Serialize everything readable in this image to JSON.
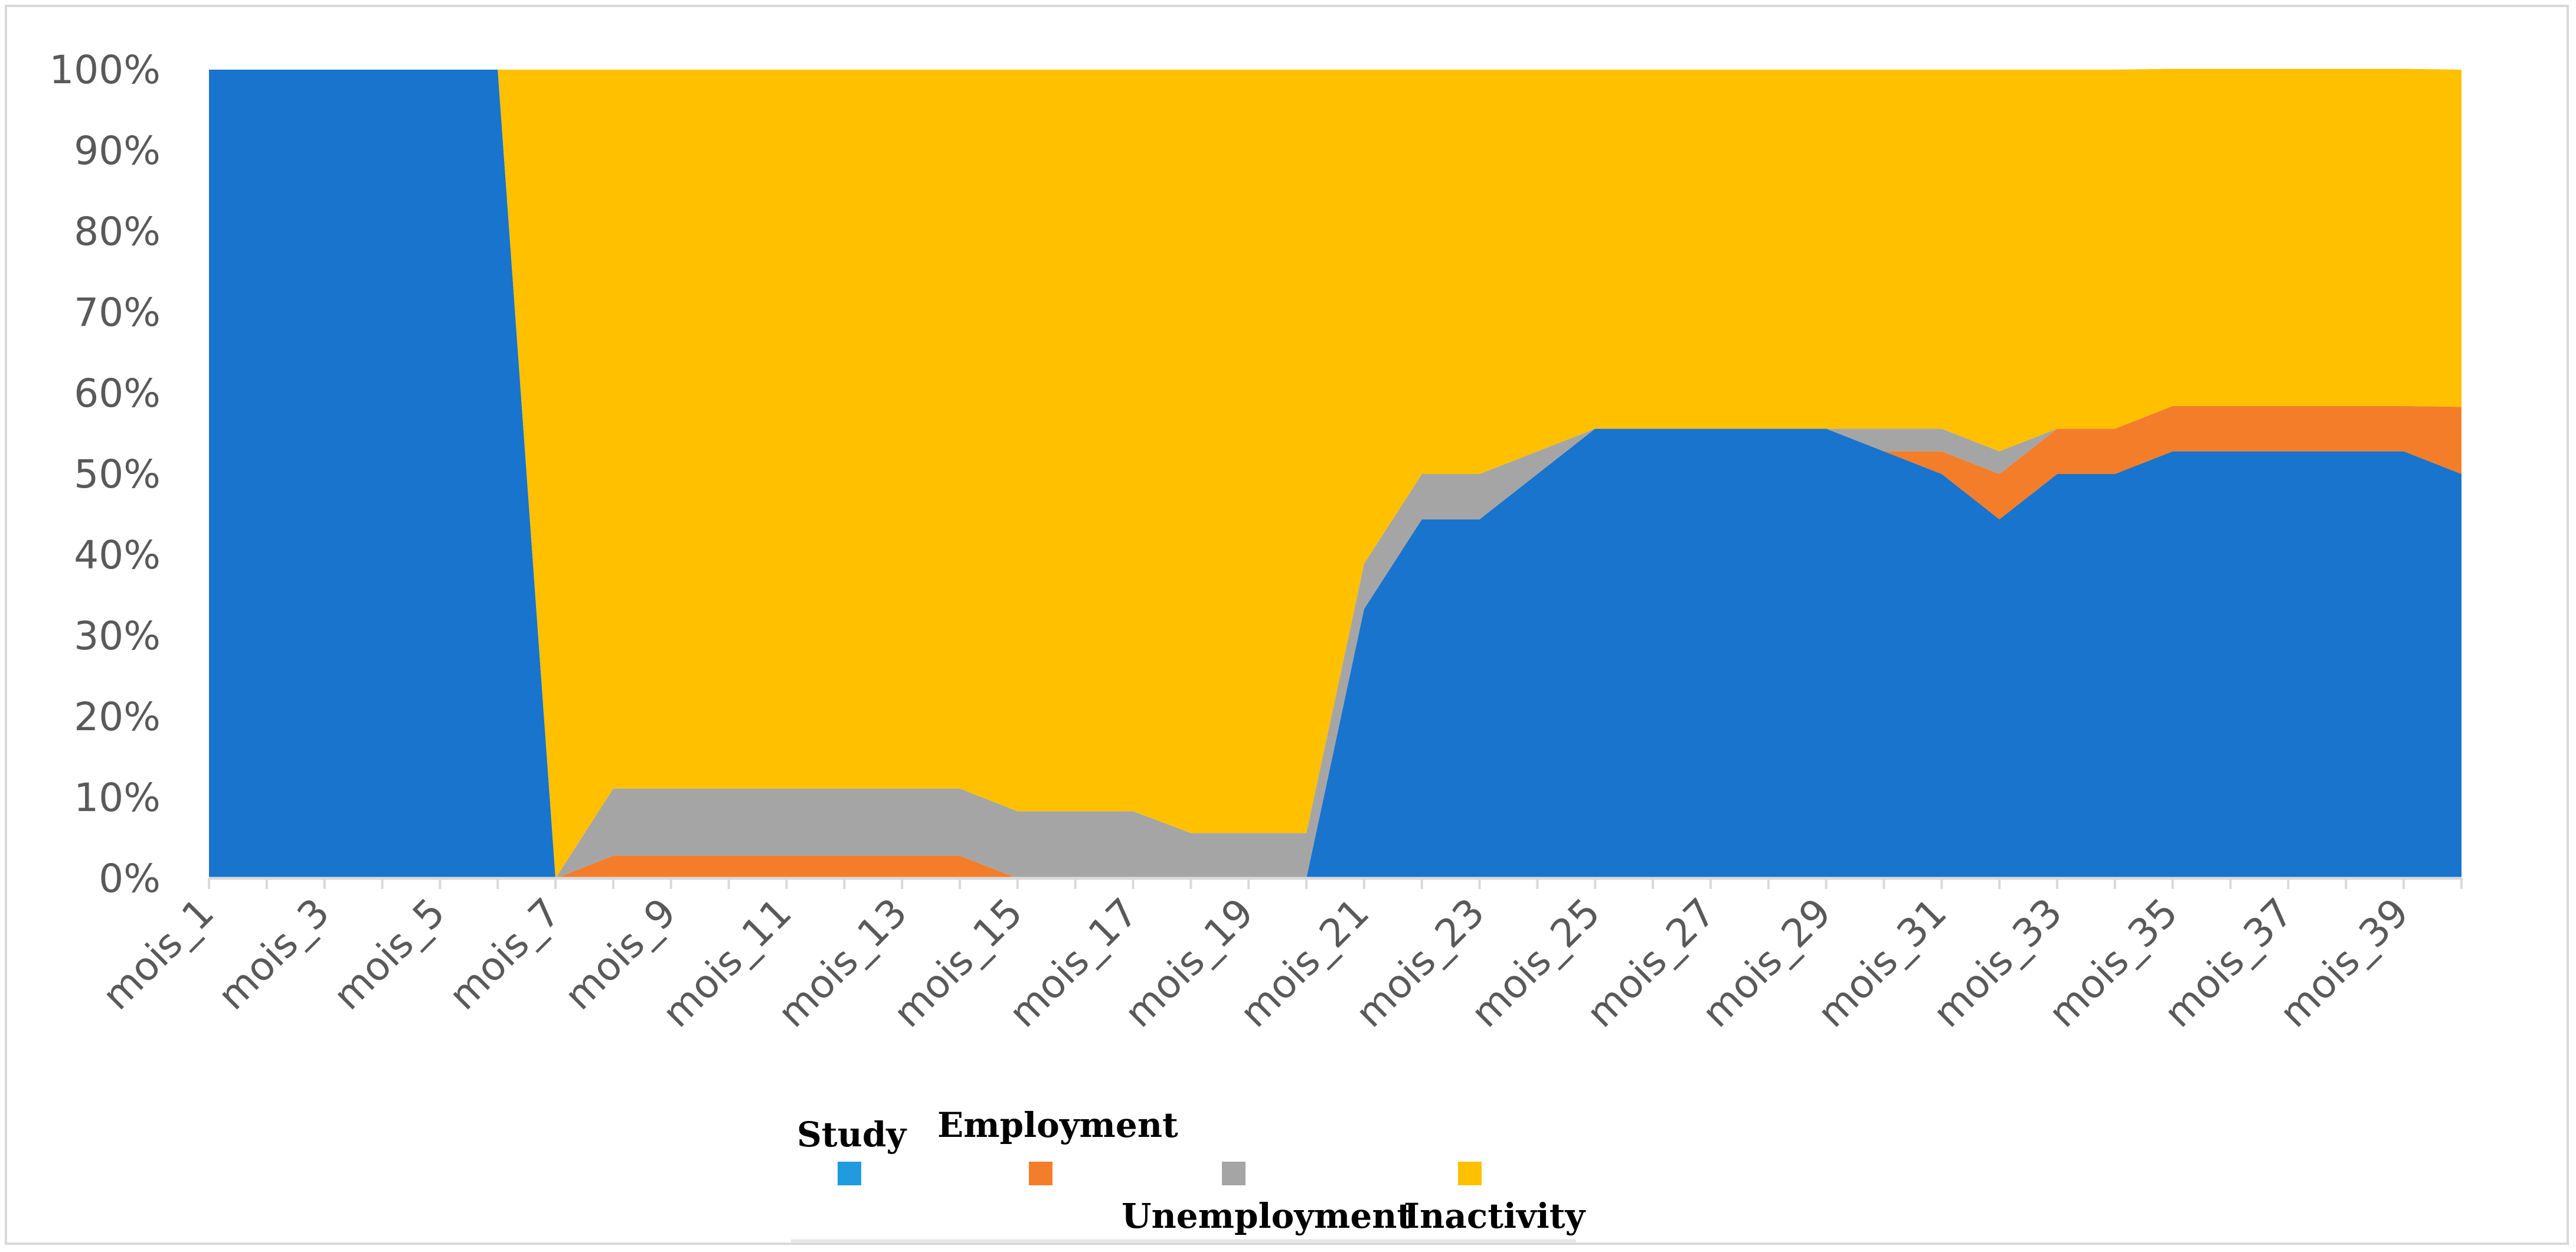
{
  "chart_data": {
    "type": "area",
    "stacked": "percent",
    "title": "",
    "xlabel": "",
    "ylabel": "",
    "ylim": [
      0,
      100
    ],
    "y_ticks": [
      "0%",
      "10%",
      "20%",
      "30%",
      "40%",
      "50%",
      "60%",
      "70%",
      "80%",
      "90%",
      "100%"
    ],
    "x_tick_labels": [
      "mois_1",
      "mois_3",
      "mois_5",
      "mois_7",
      "mois_9",
      "mois_11",
      "mois_13",
      "mois_15",
      "mois_17",
      "mois_19",
      "mois_21",
      "mois_23",
      "mois_25",
      "mois_27",
      "mois_29",
      "mois_31",
      "mois_33",
      "mois_35",
      "mois_37",
      "mois_39"
    ],
    "categories": [
      "mois_1",
      "mois_2",
      "mois_3",
      "mois_4",
      "mois_5",
      "mois_6",
      "mois_7",
      "mois_8",
      "mois_9",
      "mois_10",
      "mois_11",
      "mois_12",
      "mois_13",
      "mois_14",
      "mois_15",
      "mois_16",
      "mois_17",
      "mois_18",
      "mois_19",
      "mois_20",
      "mois_21",
      "mois_22",
      "mois_23",
      "mois_24",
      "mois_25",
      "mois_26",
      "mois_27",
      "mois_28",
      "mois_29",
      "mois_30",
      "mois_31",
      "mois_32",
      "mois_33",
      "mois_34",
      "mois_35",
      "mois_36",
      "mois_37",
      "mois_38",
      "mois_39",
      "mois_40"
    ],
    "series": [
      {
        "name": "Study",
        "color": "#1874CD",
        "values": [
          100,
          100,
          100,
          100,
          100,
          100,
          0,
          0,
          0,
          0,
          0,
          0,
          0,
          0,
          0,
          0,
          0,
          0,
          0,
          0,
          33.3,
          44.4,
          44.4,
          50,
          55.6,
          55.6,
          55.6,
          55.6,
          55.6,
          52.8,
          50,
          44.4,
          50,
          50,
          52.8,
          52.8,
          52.8,
          52.8,
          52.8,
          50
        ]
      },
      {
        "name": "Employment",
        "color": "#F47D2A",
        "values": [
          0,
          0,
          0,
          0,
          0,
          0,
          0,
          2.8,
          2.8,
          2.8,
          2.8,
          2.8,
          2.8,
          2.8,
          0,
          0,
          0,
          0,
          0,
          0,
          0,
          0,
          0,
          0,
          0,
          0,
          0,
          0,
          0,
          0,
          2.8,
          5.6,
          5.6,
          5.6,
          5.6,
          5.6,
          5.6,
          5.6,
          5.6,
          8.3
        ]
      },
      {
        "name": "Unemployment",
        "color": "#A5A5A5",
        "values": [
          0,
          0,
          0,
          0,
          0,
          0,
          0,
          8.3,
          8.3,
          8.3,
          8.3,
          8.3,
          8.3,
          8.3,
          8.3,
          8.3,
          8.3,
          5.6,
          5.6,
          5.6,
          5.6,
          5.6,
          5.6,
          2.8,
          0,
          0,
          0,
          0,
          0,
          2.8,
          2.8,
          2.8,
          0,
          0,
          0,
          0,
          0,
          0,
          0,
          0
        ]
      },
      {
        "name": "Inactivity",
        "color": "#FFC000",
        "values": [
          0,
          0,
          0,
          0,
          0,
          0,
          100,
          88.9,
          88.9,
          88.9,
          88.9,
          88.9,
          88.9,
          88.9,
          91.7,
          91.7,
          91.7,
          94.4,
          94.4,
          94.4,
          61.1,
          50,
          50,
          47.2,
          44.4,
          44.4,
          44.4,
          44.4,
          44.4,
          44.4,
          44.4,
          47.2,
          44.4,
          44.4,
          41.7,
          41.7,
          41.7,
          41.7,
          41.7,
          41.7
        ]
      }
    ],
    "legend": {
      "position": "bottom",
      "entries": [
        {
          "label": "Study",
          "swatch_color": "#1F9BDE"
        },
        {
          "label": "Employment",
          "swatch_color": "#F47D2A"
        },
        {
          "label": "Unemployment",
          "swatch_color": "#A5A5A5"
        },
        {
          "label": "Inactivity",
          "swatch_color": "#FFC000"
        }
      ]
    },
    "axis_color": "#d9d9d9",
    "tick_text_color": "#595959",
    "grid": false
  }
}
